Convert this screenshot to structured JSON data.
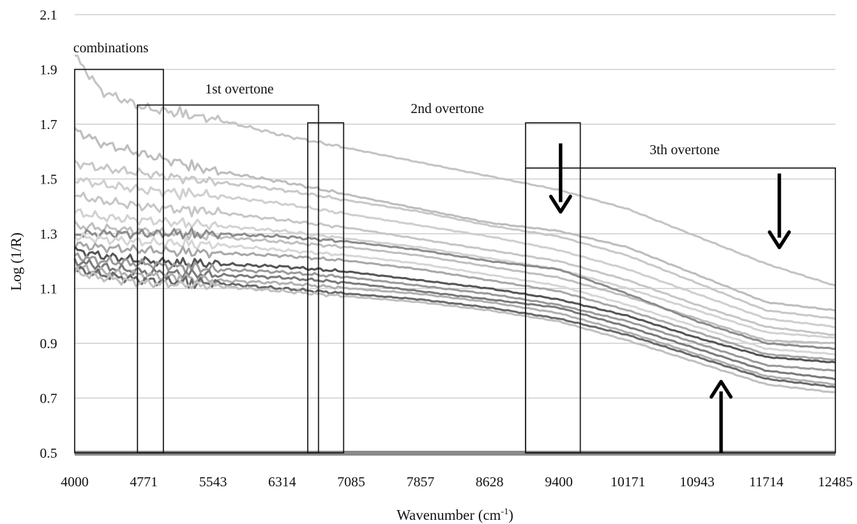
{
  "chart_data": {
    "type": "line",
    "title": "",
    "xlabel": "Wavenumber (cm",
    "xlabel_sup": "-1",
    "xlabel_tail": ")",
    "ylabel": "Log (1/R)",
    "xlim": [
      4000,
      12485
    ],
    "ylim": [
      0.5,
      2.1
    ],
    "x_ticks": [
      4000,
      4771,
      5543,
      6314,
      7085,
      7857,
      8628,
      9400,
      10171,
      10943,
      11714,
      12485
    ],
    "x_tick_labels": [
      "4000",
      "4771",
      "5543",
      "6314",
      "7085",
      "7857",
      "8628",
      "9400",
      "10171",
      "10943",
      "11714",
      "12485"
    ],
    "y_ticks": [
      0.5,
      0.7,
      0.9,
      1.1,
      1.3,
      1.5,
      1.7,
      1.9,
      2.1
    ],
    "y_tick_labels": [
      "0.5",
      "0.7",
      "0.9",
      "1.1",
      "1.3",
      "1.5",
      "1.7",
      "1.9",
      "2.1"
    ],
    "grid": "horizontal",
    "legend": "none",
    "regions": [
      {
        "label": "combinations",
        "x": [
          4000,
          4990
        ],
        "top": 1.9
      },
      {
        "label": "1st overtone",
        "x": [
          4700,
          6720
        ],
        "top": 1.77
      },
      {
        "label": "2nd overtone",
        "x": [
          6600,
          7000
        ],
        "top": 1.705
      },
      {
        "label": "3th overtone",
        "x": [
          9030,
          12485
        ],
        "top": 1.54
      }
    ],
    "extra_box": {
      "x": [
        9030,
        9640
      ],
      "top": 1.705
    },
    "arrows": [
      {
        "direction": "down",
        "x": 9420,
        "from": 1.63,
        "to": 1.38
      },
      {
        "direction": "down",
        "x": 11860,
        "from": 1.52,
        "to": 1.25
      },
      {
        "direction": "up",
        "x": 11210,
        "from": 0.5,
        "to": 0.76
      }
    ],
    "spectra_x": [
      4000,
      4300,
      4771,
      5543,
      6314,
      7085,
      7857,
      8628,
      9400,
      10171,
      10943,
      11714,
      12485
    ],
    "series": [
      {
        "color": "#c4c4c4",
        "values": [
          1.95,
          1.82,
          1.76,
          1.72,
          1.66,
          1.61,
          1.56,
          1.51,
          1.46,
          1.39,
          1.29,
          1.19,
          1.11
        ]
      },
      {
        "color": "#bdbdbd",
        "values": [
          1.68,
          1.63,
          1.59,
          1.53,
          1.49,
          1.44,
          1.39,
          1.34,
          1.31,
          1.25,
          1.15,
          1.05,
          1.02
        ]
      },
      {
        "color": "#c8c8c8",
        "values": [
          1.56,
          1.54,
          1.52,
          1.49,
          1.46,
          1.42,
          1.38,
          1.33,
          1.29,
          1.22,
          1.12,
          1.02,
          0.99
        ]
      },
      {
        "color": "#cfcfcf",
        "values": [
          1.5,
          1.48,
          1.46,
          1.44,
          1.41,
          1.37,
          1.33,
          1.29,
          1.24,
          1.17,
          1.08,
          0.99,
          0.96
        ]
      },
      {
        "color": "#c6c6c6",
        "values": [
          1.44,
          1.42,
          1.4,
          1.38,
          1.35,
          1.32,
          1.28,
          1.24,
          1.2,
          1.13,
          1.04,
          0.96,
          0.93
        ]
      },
      {
        "color": "#d2d2d2",
        "values": [
          1.38,
          1.36,
          1.35,
          1.33,
          1.31,
          1.28,
          1.25,
          1.21,
          1.17,
          1.1,
          1.02,
          0.94,
          0.92
        ]
      },
      {
        "color": "#bfbfbf",
        "values": [
          1.33,
          1.32,
          1.31,
          1.29,
          1.27,
          1.25,
          1.22,
          1.18,
          1.14,
          1.07,
          0.99,
          0.91,
          0.9
        ]
      },
      {
        "color": "#8c8c8c",
        "values": [
          1.3,
          1.3,
          1.3,
          1.3,
          1.29,
          1.27,
          1.24,
          1.2,
          1.17,
          1.08,
          0.98,
          0.9,
          0.88
        ]
      },
      {
        "color": "#d6d6d6",
        "values": [
          1.29,
          1.28,
          1.27,
          1.26,
          1.24,
          1.22,
          1.19,
          1.15,
          1.11,
          1.04,
          0.96,
          0.88,
          0.86
        ]
      },
      {
        "color": "#a8a8a8",
        "values": [
          1.26,
          1.25,
          1.24,
          1.23,
          1.22,
          1.2,
          1.17,
          1.13,
          1.09,
          1.02,
          0.94,
          0.86,
          0.84
        ]
      },
      {
        "color": "#555555",
        "values": [
          1.24,
          1.22,
          1.2,
          1.19,
          1.18,
          1.16,
          1.13,
          1.1,
          1.06,
          1.0,
          0.92,
          0.85,
          0.83
        ]
      },
      {
        "color": "#9a9a9a",
        "values": [
          1.22,
          1.2,
          1.19,
          1.17,
          1.16,
          1.14,
          1.11,
          1.08,
          1.04,
          0.98,
          0.9,
          0.82,
          0.8
        ]
      },
      {
        "color": "#7a7a7a",
        "values": [
          1.2,
          1.18,
          1.16,
          1.15,
          1.14,
          1.12,
          1.09,
          1.06,
          1.03,
          0.96,
          0.88,
          0.8,
          0.77
        ]
      },
      {
        "color": "#b0b0b0",
        "values": [
          1.18,
          1.16,
          1.15,
          1.13,
          1.12,
          1.1,
          1.08,
          1.05,
          1.01,
          0.94,
          0.86,
          0.78,
          0.75
        ]
      },
      {
        "color": "#6a6a6a",
        "values": [
          1.17,
          1.15,
          1.13,
          1.12,
          1.1,
          1.08,
          1.06,
          1.03,
          0.99,
          0.93,
          0.85,
          0.77,
          0.74
        ]
      },
      {
        "color": "#c0c0c0",
        "values": [
          1.16,
          1.14,
          1.12,
          1.11,
          1.09,
          1.07,
          1.05,
          1.02,
          0.98,
          0.91,
          0.83,
          0.75,
          0.72
        ]
      }
    ]
  }
}
